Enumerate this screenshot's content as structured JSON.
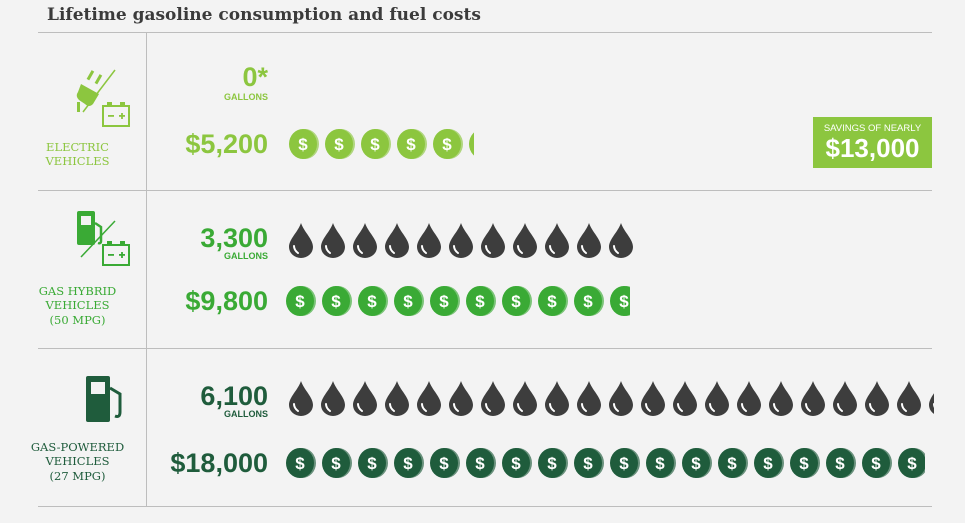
{
  "title": "Lifetime gasoline consumption and fuel costs",
  "colors": {
    "electric": "#8cc63f",
    "hybrid": "#3aaa35",
    "gas": "#1f5c3c",
    "drop": "#3d3d3d"
  },
  "icons": {
    "electric": "plug-battery-icon",
    "hybrid": "gas-pump-battery-icon",
    "gas": "gas-pump-icon",
    "coin": "dollar-coin-icon",
    "drop": "oil-drop-icon"
  },
  "badge": {
    "line1": "SAVINGS OF NEARLY",
    "line2": "$13,000"
  },
  "categories": {
    "electric": {
      "name": "ELECTRIC VEHICLES",
      "sub": "",
      "gallons": "0*",
      "gallons_unit": "GALLONS",
      "cost": "$5,200"
    },
    "hybrid": {
      "name": "GAS HYBRID VEHICLES",
      "sub": "(50 MPG)",
      "gallons": "3,300",
      "gallons_unit": "GALLONS",
      "cost": "$9,800"
    },
    "gas": {
      "name": "GAS-POWERED VEHICLES",
      "sub": "(27 MPG)",
      "gallons": "6,100",
      "gallons_unit": "GALLONS",
      "cost": "$18,000"
    }
  },
  "chart_data": {
    "type": "bar",
    "title": "Lifetime gasoline consumption and fuel costs",
    "categories": [
      "ELECTRIC VEHICLES",
      "GAS HYBRID VEHICLES (50 MPG)",
      "GAS-POWERED VEHICLES (27 MPG)"
    ],
    "series": [
      {
        "name": "GALLONS",
        "values": [
          0,
          3300,
          6100
        ]
      },
      {
        "name": "COST",
        "values": [
          5200,
          9800,
          18000
        ]
      }
    ],
    "annotations": [
      "SAVINGS OF NEARLY $13,000"
    ]
  }
}
